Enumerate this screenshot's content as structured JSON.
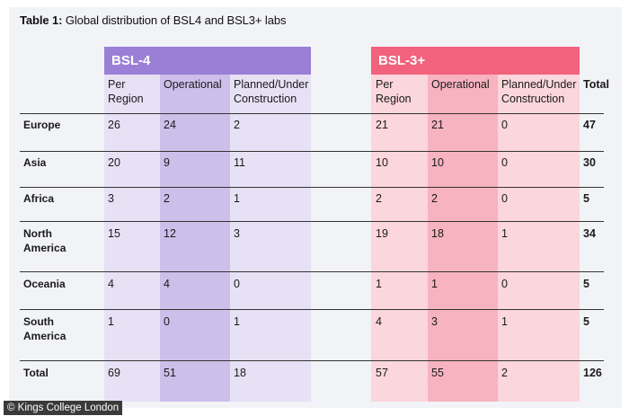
{
  "caption": {
    "bold": "Table 1:",
    "text": " Global distribution of BSL4 and BSL3+ labs"
  },
  "groups": {
    "bsl4": "BSL-4",
    "bsl3": "BSL-3+"
  },
  "headers": {
    "per_region": "Per Region",
    "operational": "Operational",
    "planned": "Planned/Under Construction",
    "total": "Total"
  },
  "rows": [
    {
      "region": "Europe",
      "b4_per": "26",
      "b4_op": "24",
      "b4_plan": "2",
      "b3_per": "21",
      "b3_op": "21",
      "b3_plan": "0",
      "total": "47"
    },
    {
      "region": "Asia",
      "b4_per": "20",
      "b4_op": "9",
      "b4_plan": "11",
      "b3_per": "10",
      "b3_op": "10",
      "b3_plan": "0",
      "total": "30"
    },
    {
      "region": "Africa",
      "b4_per": "3",
      "b4_op": "2",
      "b4_plan": "1",
      "b3_per": "2",
      "b3_op": "2",
      "b3_plan": "0",
      "total": "5"
    },
    {
      "region": "North America",
      "b4_per": "15",
      "b4_op": "12",
      "b4_plan": "3",
      "b3_per": "19",
      "b3_op": "18",
      "b3_plan": "1",
      "total": "34"
    },
    {
      "region": "Oceania",
      "b4_per": "4",
      "b4_op": "4",
      "b4_plan": "0",
      "b3_per": "1",
      "b3_op": "1",
      "b3_plan": "0",
      "total": "5"
    },
    {
      "region": "South America",
      "b4_per": "1",
      "b4_op": "0",
      "b4_plan": "1",
      "b3_per": "4",
      "b3_op": "3",
      "b3_plan": "1",
      "total": "5"
    },
    {
      "region": "Total",
      "b4_per": "69",
      "b4_op": "51",
      "b4_plan": "18",
      "b3_per": "57",
      "b3_op": "55",
      "b3_plan": "2",
      "total": "126"
    }
  ],
  "colors": {
    "bsl4_head": "#9a7fd6",
    "bsl4_light": "#e7e1f5",
    "bsl4_mid": "#cdbfea",
    "bsl3_head": "#f2627d",
    "bsl3_light": "#fbd6dc",
    "bsl3_mid": "#f7b3bf"
  },
  "credit": "© Kings College London"
}
